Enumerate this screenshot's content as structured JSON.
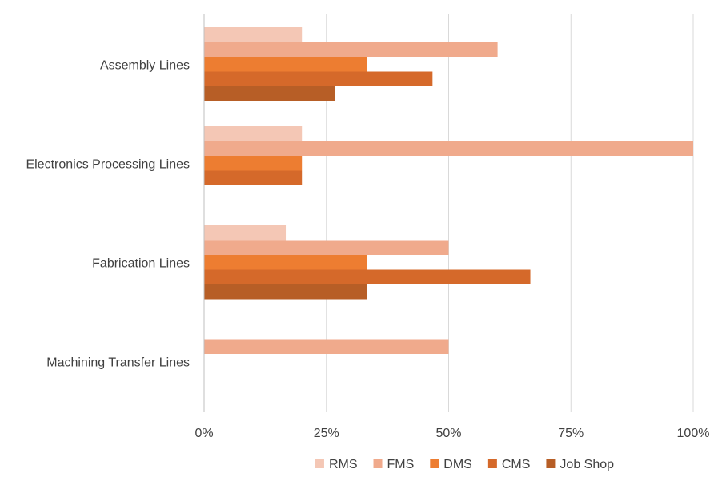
{
  "chart_data": {
    "type": "bar",
    "orientation": "horizontal",
    "title": "",
    "xlabel": "",
    "ylabel": "",
    "xlim": [
      0,
      1
    ],
    "categories": [
      "Assembly Lines",
      "Electronics Processing Lines",
      "Fabrication Lines",
      "Machining Transfer Lines"
    ],
    "ticks": [
      {
        "value": 0,
        "label": "0%"
      },
      {
        "value": 0.25,
        "label": "25%"
      },
      {
        "value": 0.5,
        "label": "50%"
      },
      {
        "value": 0.75,
        "label": "75%"
      },
      {
        "value": 1,
        "label": "100%"
      }
    ],
    "series": [
      {
        "name": "RMS",
        "color": "#F4C7B5",
        "values": [
          0.2,
          0.2,
          0.167,
          0
        ]
      },
      {
        "name": "FMS",
        "color": "#F0AA8C",
        "values": [
          0.6,
          1.0,
          0.5,
          0.5
        ]
      },
      {
        "name": "DMS",
        "color": "#ED7D31",
        "values": [
          0.333,
          0.2,
          0.333,
          0
        ]
      },
      {
        "name": "CMS",
        "color": "#D5692A",
        "values": [
          0.467,
          0.2,
          0.667,
          0
        ]
      },
      {
        "name": "Job Shop",
        "color": "#B75E26",
        "values": [
          0.267,
          0,
          0.333,
          0
        ]
      }
    ],
    "grid": true,
    "legend_position": "bottom"
  }
}
